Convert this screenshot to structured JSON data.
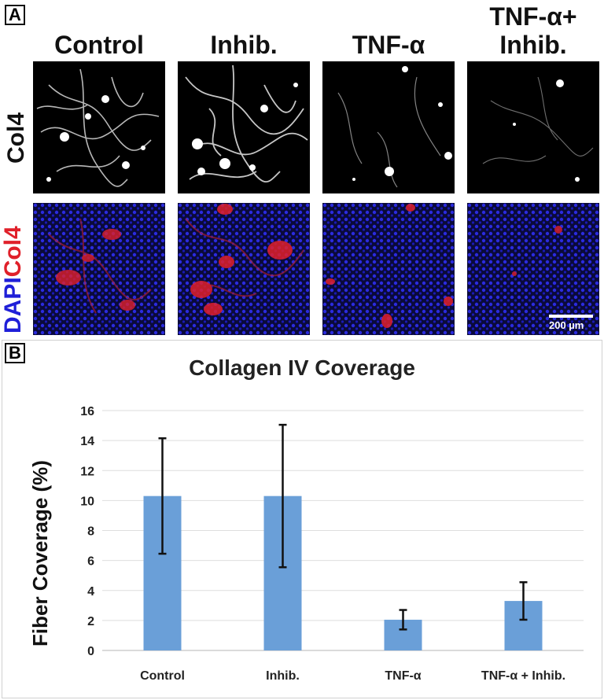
{
  "panel_a": {
    "label": "A",
    "columns": [
      "Control",
      "Inhib.",
      "TNF-α"
    ],
    "column_last_line1": "TNF-α+",
    "column_last_line2": "Inhib.",
    "row1_label": "Col4",
    "row2_label_dapi": "DAPI",
    "row2_label_col4": "Col4",
    "scale_bar": "200 µm",
    "colors": {
      "dapi": "#1f1fd8",
      "col4": "#e0202a",
      "tile_bg": "#000000"
    }
  },
  "panel_b": {
    "label": "B"
  },
  "chart_data": {
    "type": "bar",
    "title": "Collagen IV Coverage",
    "ylabel": "Fiber Coverage (%)",
    "xlabel": "",
    "categories": [
      "Control",
      "Inhib.",
      "TNF-α",
      "TNF-α + Inhib."
    ],
    "values": [
      10.3,
      10.3,
      2.05,
      3.3
    ],
    "error_bars": [
      3.85,
      4.75,
      0.65,
      1.25
    ],
    "ylim": [
      0,
      16
    ],
    "yticks": [
      0,
      2,
      4,
      6,
      8,
      10,
      12,
      14,
      16
    ],
    "grid": true,
    "bar_color": "#6a9fd8",
    "legend": "none"
  }
}
